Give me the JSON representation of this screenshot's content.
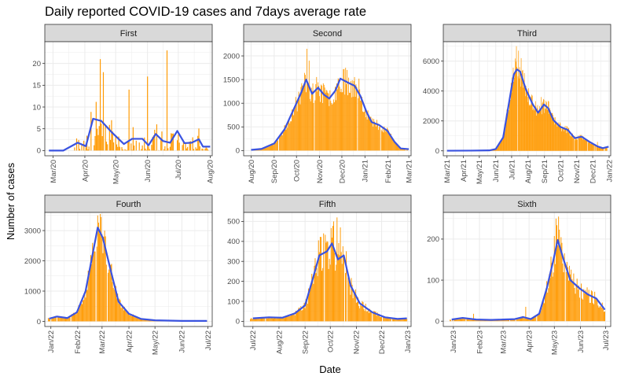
{
  "chart_data": {
    "type": "bar",
    "title": "Daily reported COVID-19 cases and 7days average rate",
    "xlabel": "Date",
    "ylabel": "Number of cases",
    "grid": true,
    "colors": {
      "bar": "#FF9900",
      "line": "#3A53E0",
      "strip_fill": "#D9D9D9",
      "grid": "#EBEBEB"
    },
    "series_kinds": [
      "daily reported cases (bars)",
      "7-day average (line)"
    ],
    "facets": [
      {
        "name": "First",
        "xlim": [
          "2020-02-22",
          "2020-08-03"
        ],
        "ylim": [
          -1.2,
          25
        ],
        "y_ticks": [
          0,
          5,
          10,
          15,
          20
        ],
        "x_ticks": [
          {
            "date": "2020-03-01",
            "label": "Mar/20"
          },
          {
            "date": "2020-04-01",
            "label": "Apr/20"
          },
          {
            "date": "2020-05-01",
            "label": "May/20"
          },
          {
            "date": "2020-06-01",
            "label": "Jun/20"
          },
          {
            "date": "2020-07-01",
            "label": "Jul/20"
          },
          {
            "date": "2020-08-01",
            "label": "Aug/20"
          }
        ],
        "bars_start": "2020-03-20",
        "bars_end": "2020-07-30",
        "bar_seed": 11,
        "bar_noise": 1.6,
        "bar_sparsity": 0.35,
        "bar_spikes": [
          {
            "date": "2020-04-16",
            "value": 21
          },
          {
            "date": "2020-04-19",
            "value": 18
          },
          {
            "date": "2020-06-01",
            "value": 17
          },
          {
            "date": "2020-06-20",
            "value": 23
          },
          {
            "date": "2020-05-14",
            "value": 14
          }
        ],
        "avg": [
          {
            "date": "2020-02-26",
            "value": 0
          },
          {
            "date": "2020-03-11",
            "value": 0
          },
          {
            "date": "2020-03-25",
            "value": 1.8
          },
          {
            "date": "2020-04-02",
            "value": 1.0
          },
          {
            "date": "2020-04-09",
            "value": 7.3
          },
          {
            "date": "2020-04-17",
            "value": 6.8
          },
          {
            "date": "2020-04-28",
            "value": 4.0
          },
          {
            "date": "2020-05-09",
            "value": 1.5
          },
          {
            "date": "2020-05-17",
            "value": 2.7
          },
          {
            "date": "2020-05-27",
            "value": 2.7
          },
          {
            "date": "2020-06-02",
            "value": 1.2
          },
          {
            "date": "2020-06-09",
            "value": 3.8
          },
          {
            "date": "2020-06-16",
            "value": 2.2
          },
          {
            "date": "2020-06-23",
            "value": 1.8
          },
          {
            "date": "2020-06-30",
            "value": 4.5
          },
          {
            "date": "2020-07-07",
            "value": 1.7
          },
          {
            "date": "2020-07-14",
            "value": 1.8
          },
          {
            "date": "2020-07-21",
            "value": 2.6
          },
          {
            "date": "2020-07-25",
            "value": 0.9
          },
          {
            "date": "2020-08-01",
            "value": 0.9
          }
        ]
      },
      {
        "name": "Second",
        "xlim": [
          "2020-07-22",
          "2021-03-04"
        ],
        "ylim": [
          -110,
          2300
        ],
        "y_ticks": [
          0,
          500,
          1000,
          1500,
          2000
        ],
        "x_ticks": [
          {
            "date": "2020-08-01",
            "label": "Aug/20"
          },
          {
            "date": "2020-09-01",
            "label": "Sep/20"
          },
          {
            "date": "2020-10-01",
            "label": "Oct/20"
          },
          {
            "date": "2020-11-01",
            "label": "Nov/20"
          },
          {
            "date": "2020-12-01",
            "label": "Dec/20"
          },
          {
            "date": "2021-01-01",
            "label": "Jan/21"
          },
          {
            "date": "2021-02-01",
            "label": "Feb/21"
          },
          {
            "date": "2021-03-01",
            "label": "Mar/21"
          }
        ],
        "bars_start": "2020-08-04",
        "bars_end": "2021-02-27",
        "bar_seed": 23,
        "bar_noise": 0.2,
        "bar_sparsity": 0.04,
        "bar_spikes": [
          {
            "date": "2020-10-15",
            "value": 2150
          },
          {
            "date": "2020-10-18",
            "value": 1900
          },
          {
            "date": "2020-12-03",
            "value": 1720
          },
          {
            "date": "2020-12-24",
            "value": 1520
          }
        ],
        "avg": [
          {
            "date": "2020-08-01",
            "value": 15
          },
          {
            "date": "2020-08-15",
            "value": 35
          },
          {
            "date": "2020-09-01",
            "value": 150
          },
          {
            "date": "2020-09-15",
            "value": 450
          },
          {
            "date": "2020-10-01",
            "value": 1000
          },
          {
            "date": "2020-10-08",
            "value": 1250
          },
          {
            "date": "2020-10-14",
            "value": 1500
          },
          {
            "date": "2020-10-22",
            "value": 1200
          },
          {
            "date": "2020-10-30",
            "value": 1330
          },
          {
            "date": "2020-11-07",
            "value": 1180
          },
          {
            "date": "2020-11-14",
            "value": 1100
          },
          {
            "date": "2020-11-22",
            "value": 1260
          },
          {
            "date": "2020-11-29",
            "value": 1520
          },
          {
            "date": "2020-12-10",
            "value": 1430
          },
          {
            "date": "2020-12-18",
            "value": 1370
          },
          {
            "date": "2020-12-26",
            "value": 1150
          },
          {
            "date": "2021-01-03",
            "value": 820
          },
          {
            "date": "2021-01-10",
            "value": 600
          },
          {
            "date": "2021-01-20",
            "value": 540
          },
          {
            "date": "2021-01-31",
            "value": 420
          },
          {
            "date": "2021-02-10",
            "value": 180
          },
          {
            "date": "2021-02-18",
            "value": 45
          },
          {
            "date": "2021-03-01",
            "value": 30
          }
        ]
      },
      {
        "name": "Third",
        "xlim": [
          "2021-02-22",
          "2022-01-04"
        ],
        "ylim": [
          -330,
          7300
        ],
        "y_ticks": [
          0,
          2000,
          4000,
          6000
        ],
        "x_ticks": [
          {
            "date": "2021-03-01",
            "label": "Mar/21"
          },
          {
            "date": "2021-04-01",
            "label": "Apr/21"
          },
          {
            "date": "2021-05-01",
            "label": "May/21"
          },
          {
            "date": "2021-06-01",
            "label": "Jun/21"
          },
          {
            "date": "2021-07-01",
            "label": "Jul/21"
          },
          {
            "date": "2021-08-01",
            "label": "Aug/21"
          },
          {
            "date": "2021-09-01",
            "label": "Sep/21"
          },
          {
            "date": "2021-10-01",
            "label": "Oct/21"
          },
          {
            "date": "2021-11-01",
            "label": "Nov/21"
          },
          {
            "date": "2021-12-01",
            "label": "Dec/21"
          },
          {
            "date": "2022-01-01",
            "label": "Jan/22"
          }
        ],
        "bars_start": "2021-03-04",
        "bars_end": "2021-12-28",
        "bar_seed": 37,
        "bar_noise": 0.18,
        "bar_sparsity": 0.04,
        "bar_spikes": [
          {
            "date": "2021-07-10",
            "value": 7000
          },
          {
            "date": "2021-07-14",
            "value": 6700
          },
          {
            "date": "2021-07-19",
            "value": 6200
          },
          {
            "date": "2021-08-26",
            "value": 3600
          },
          {
            "date": "2021-09-09",
            "value": 3300
          },
          {
            "date": "2021-12-10",
            "value": 600
          }
        ],
        "avg": [
          {
            "date": "2021-03-01",
            "value": 10
          },
          {
            "date": "2021-04-15",
            "value": 15
          },
          {
            "date": "2021-05-20",
            "value": 30
          },
          {
            "date": "2021-06-01",
            "value": 120
          },
          {
            "date": "2021-06-15",
            "value": 900
          },
          {
            "date": "2021-06-25",
            "value": 3000
          },
          {
            "date": "2021-07-05",
            "value": 5100
          },
          {
            "date": "2021-07-11",
            "value": 5450
          },
          {
            "date": "2021-07-17",
            "value": 5300
          },
          {
            "date": "2021-07-28",
            "value": 4100
          },
          {
            "date": "2021-08-10",
            "value": 3100
          },
          {
            "date": "2021-08-20",
            "value": 2550
          },
          {
            "date": "2021-08-31",
            "value": 3100
          },
          {
            "date": "2021-09-08",
            "value": 2850
          },
          {
            "date": "2021-09-18",
            "value": 2050
          },
          {
            "date": "2021-10-01",
            "value": 1600
          },
          {
            "date": "2021-10-15",
            "value": 1400
          },
          {
            "date": "2021-10-28",
            "value": 850
          },
          {
            "date": "2021-11-10",
            "value": 950
          },
          {
            "date": "2021-11-25",
            "value": 600
          },
          {
            "date": "2021-12-10",
            "value": 300
          },
          {
            "date": "2021-12-20",
            "value": 180
          },
          {
            "date": "2021-12-31",
            "value": 280
          }
        ]
      },
      {
        "name": "Fourth",
        "xlim": [
          "2021-12-25",
          "2022-07-06"
        ],
        "ylim": [
          -170,
          3600
        ],
        "y_ticks": [
          0,
          1000,
          2000,
          3000
        ],
        "x_ticks": [
          {
            "date": "2022-01-01",
            "label": "Jan/22"
          },
          {
            "date": "2022-02-01",
            "label": "Feb/22"
          },
          {
            "date": "2022-03-01",
            "label": "Mar/22"
          },
          {
            "date": "2022-04-01",
            "label": "Apr/22"
          },
          {
            "date": "2022-05-01",
            "label": "May/22"
          },
          {
            "date": "2022-06-01",
            "label": "Jun/22"
          },
          {
            "date": "2022-07-01",
            "label": "Jul/22"
          }
        ],
        "bars_start": "2021-12-29",
        "bars_end": "2022-06-30",
        "bar_seed": 41,
        "bar_noise": 0.22,
        "bar_sparsity": 0.04,
        "bar_spikes": [
          {
            "date": "2022-02-24",
            "value": 3500
          },
          {
            "date": "2022-02-27",
            "value": 3550
          },
          {
            "date": "2022-03-04",
            "value": 3000
          }
        ],
        "avg": [
          {
            "date": "2021-12-30",
            "value": 90
          },
          {
            "date": "2022-01-08",
            "value": 160
          },
          {
            "date": "2022-01-20",
            "value": 110
          },
          {
            "date": "2022-01-31",
            "value": 300
          },
          {
            "date": "2022-02-10",
            "value": 1000
          },
          {
            "date": "2022-02-18",
            "value": 2200
          },
          {
            "date": "2022-02-24",
            "value": 3100
          },
          {
            "date": "2022-03-02",
            "value": 2750
          },
          {
            "date": "2022-03-10",
            "value": 1800
          },
          {
            "date": "2022-03-20",
            "value": 650
          },
          {
            "date": "2022-04-01",
            "value": 250
          },
          {
            "date": "2022-04-15",
            "value": 80
          },
          {
            "date": "2022-05-01",
            "value": 35
          },
          {
            "date": "2022-06-01",
            "value": 15
          },
          {
            "date": "2022-06-30",
            "value": 15
          }
        ]
      },
      {
        "name": "Fifth",
        "xlim": [
          "2022-06-20",
          "2023-01-05"
        ],
        "ylim": [
          -26,
          545
        ],
        "y_ticks": [
          0,
          100,
          200,
          300,
          400,
          500
        ],
        "x_ticks": [
          {
            "date": "2022-07-01",
            "label": "Jul/22"
          },
          {
            "date": "2022-08-01",
            "label": "Aug/22"
          },
          {
            "date": "2022-09-01",
            "label": "Sep/22"
          },
          {
            "date": "2022-10-01",
            "label": "Oct/22"
          },
          {
            "date": "2022-11-01",
            "label": "Nov/22"
          },
          {
            "date": "2022-12-01",
            "label": "Dec/22"
          },
          {
            "date": "2023-01-01",
            "label": "Jan/23"
          }
        ],
        "bars_start": "2022-06-28",
        "bars_end": "2022-12-31",
        "bar_seed": 53,
        "bar_noise": 0.3,
        "bar_sparsity": 0.05,
        "bar_spikes": [
          {
            "date": "2022-09-23",
            "value": 440
          },
          {
            "date": "2022-10-05",
            "value": 500
          },
          {
            "date": "2022-10-09",
            "value": 520
          },
          {
            "date": "2022-10-13",
            "value": 470
          }
        ],
        "avg": [
          {
            "date": "2022-07-01",
            "value": 15
          },
          {
            "date": "2022-07-20",
            "value": 20
          },
          {
            "date": "2022-08-05",
            "value": 18
          },
          {
            "date": "2022-08-20",
            "value": 40
          },
          {
            "date": "2022-09-01",
            "value": 80
          },
          {
            "date": "2022-09-10",
            "value": 210
          },
          {
            "date": "2022-09-18",
            "value": 330
          },
          {
            "date": "2022-09-27",
            "value": 350
          },
          {
            "date": "2022-10-03",
            "value": 390
          },
          {
            "date": "2022-10-10",
            "value": 310
          },
          {
            "date": "2022-10-17",
            "value": 330
          },
          {
            "date": "2022-10-25",
            "value": 180
          },
          {
            "date": "2022-11-05",
            "value": 90
          },
          {
            "date": "2022-11-20",
            "value": 45
          },
          {
            "date": "2022-12-05",
            "value": 20
          },
          {
            "date": "2022-12-20",
            "value": 12
          },
          {
            "date": "2022-12-31",
            "value": 15
          }
        ]
      },
      {
        "name": "Sixth",
        "xlim": [
          "2022-12-20",
          "2023-07-07"
        ],
        "ylim": [
          -13,
          265
        ],
        "y_ticks": [
          0,
          100,
          200
        ],
        "x_ticks": [
          {
            "date": "2023-01-01",
            "label": "Jan/23"
          },
          {
            "date": "2023-02-01",
            "label": "Feb/23"
          },
          {
            "date": "2023-03-01",
            "label": "Mar/23"
          },
          {
            "date": "2023-04-01",
            "label": "Apr/23"
          },
          {
            "date": "2023-05-01",
            "label": "May/23"
          },
          {
            "date": "2023-06-01",
            "label": "Jun/23"
          },
          {
            "date": "2023-07-01",
            "label": "Jul/23"
          }
        ],
        "bars_start": "2022-12-28",
        "bars_end": "2023-06-30",
        "bar_seed": 67,
        "bar_noise": 0.3,
        "bar_sparsity": 0.06,
        "bar_spikes": [
          {
            "date": "2023-05-03",
            "value": 250
          },
          {
            "date": "2023-05-06",
            "value": 255
          },
          {
            "date": "2023-03-28",
            "value": 35
          },
          {
            "date": "2023-01-25",
            "value": 18
          }
        ],
        "avg": [
          {
            "date": "2022-12-30",
            "value": 4
          },
          {
            "date": "2023-01-12",
            "value": 8
          },
          {
            "date": "2023-01-28",
            "value": 4
          },
          {
            "date": "2023-02-15",
            "value": 3
          },
          {
            "date": "2023-03-01",
            "value": 4
          },
          {
            "date": "2023-03-15",
            "value": 5
          },
          {
            "date": "2023-03-25",
            "value": 10
          },
          {
            "date": "2023-04-03",
            "value": 5
          },
          {
            "date": "2023-04-13",
            "value": 18
          },
          {
            "date": "2023-04-22",
            "value": 80
          },
          {
            "date": "2023-04-30",
            "value": 150
          },
          {
            "date": "2023-05-05",
            "value": 198
          },
          {
            "date": "2023-05-12",
            "value": 150
          },
          {
            "date": "2023-05-20",
            "value": 100
          },
          {
            "date": "2023-05-31",
            "value": 80
          },
          {
            "date": "2023-06-10",
            "value": 65
          },
          {
            "date": "2023-06-20",
            "value": 55
          },
          {
            "date": "2023-06-30",
            "value": 28
          }
        ]
      }
    ]
  }
}
